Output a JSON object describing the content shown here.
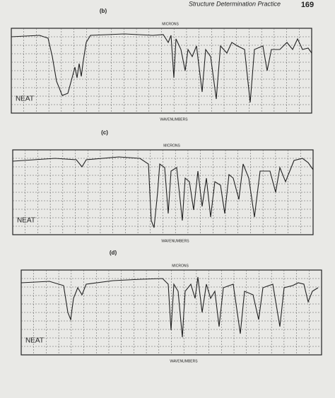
{
  "header": {
    "title": "Structure Determination Practice",
    "page": "169"
  },
  "spectra": [
    {
      "label": "(b)",
      "axis_top": "MICRONS",
      "sample": "NEAT",
      "axis_bottom": "WAVENUMBERS"
    },
    {
      "label": "(c)",
      "axis_top": "MICRONS",
      "sample": "NEAT",
      "axis_bottom": "WAVENUMBERS"
    },
    {
      "label": "(d)",
      "axis_top": "MICRONS",
      "sample": "NEAT",
      "axis_bottom": "WAVENUMBERS"
    }
  ]
}
